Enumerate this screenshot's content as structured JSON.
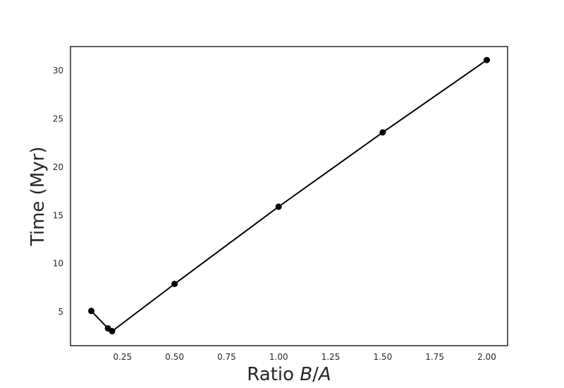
{
  "chart_data": {
    "type": "line",
    "title": "",
    "xlabel": "Ratio B/A",
    "xlabel_parts": {
      "prefix": "Ratio ",
      "var1": "B",
      "sep": "/",
      "var2": "A"
    },
    "ylabel": "Time (Myr)",
    "xlim": [
      0.0,
      2.1
    ],
    "ylim": [
      1.5,
      32.5
    ],
    "xticks": [
      0.25,
      0.5,
      0.75,
      1.0,
      1.25,
      1.5,
      1.75,
      2.0
    ],
    "xtick_labels": [
      "0.25",
      "0.50",
      "0.75",
      "1.00",
      "1.25",
      "1.50",
      "1.75",
      "2.00"
    ],
    "yticks": [
      5,
      10,
      15,
      20,
      25,
      30
    ],
    "ytick_labels": [
      "5",
      "10",
      "15",
      "20",
      "25",
      "30"
    ],
    "grid": false,
    "legend": "none",
    "series": [
      {
        "color": "#000000",
        "marker": "circle",
        "x": [
          0.1,
          0.18,
          0.2,
          0.5,
          1.0,
          1.5,
          2.0
        ],
        "y": [
          5.1,
          3.3,
          3.0,
          7.9,
          15.9,
          23.6,
          31.1
        ]
      }
    ]
  }
}
